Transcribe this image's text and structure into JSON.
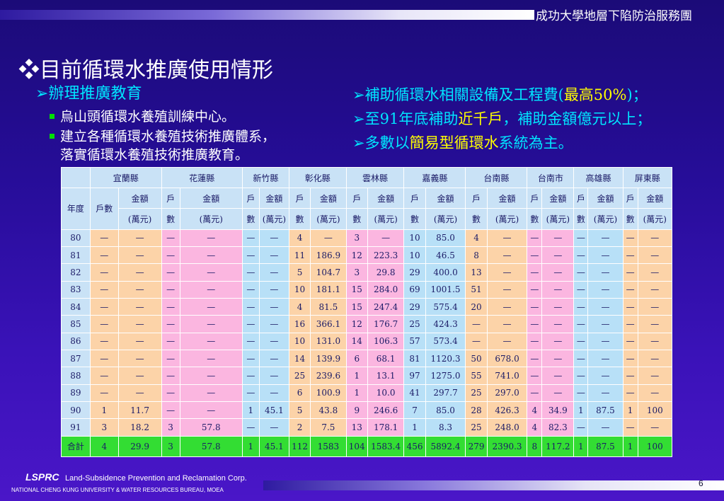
{
  "header": {
    "org": "成功大學地層下陷防治服務團"
  },
  "title": "目前循環水推廣使用情形",
  "title_icon": "diamond-bullet-icon",
  "left": {
    "heading": "辦理推廣教育",
    "bullets": [
      "烏山頭循環水養殖訓練中心。",
      "建立各種循環水養殖技術推廣體系，",
      "落實循環水養殖技術推廣教育。"
    ]
  },
  "right": {
    "line1_pre": "補助循環水相關設備及工程費(",
    "line1_hl": "最高50%",
    "line1_post": ")；",
    "line2_a": "至91年底補助",
    "line2_hl": "近千戶",
    "line2_b": "，補助金額億元以上；",
    "line3_a": "多數以",
    "line3_hl": "簡易型循環水",
    "line3_b": "系統為主。"
  },
  "table": {
    "counties": [
      "宜蘭縣",
      "花蓮縣",
      "新竹縣",
      "彰化縣",
      "雲林縣",
      "嘉義縣",
      "台南縣",
      "台南市",
      "高雄縣",
      "屏東縣"
    ],
    "year_label": "年度",
    "households_label": "戶數",
    "amount_label": "金額",
    "unit_label": "(萬元)",
    "hh_top": "戶",
    "hh_bottom": "數",
    "rows": [
      {
        "year": "80",
        "v": [
          "—",
          "—",
          "—",
          "—",
          "—",
          "—",
          "4",
          "—",
          "3",
          "—",
          "10",
          "85.0",
          "4",
          "—",
          "—",
          "—",
          "—",
          "—",
          "—",
          "—"
        ]
      },
      {
        "year": "81",
        "v": [
          "—",
          "—",
          "—",
          "—",
          "—",
          "—",
          "11",
          "186.9",
          "12",
          "223.3",
          "10",
          "46.5",
          "8",
          "—",
          "—",
          "—",
          "—",
          "—",
          "—",
          "—"
        ]
      },
      {
        "year": "82",
        "v": [
          "—",
          "—",
          "—",
          "—",
          "—",
          "—",
          "5",
          "104.7",
          "3",
          "29.8",
          "29",
          "400.0",
          "13",
          "—",
          "—",
          "—",
          "—",
          "—",
          "—",
          "—"
        ]
      },
      {
        "year": "83",
        "v": [
          "—",
          "—",
          "—",
          "—",
          "—",
          "—",
          "10",
          "181.1",
          "15",
          "284.0",
          "69",
          "1001.5",
          "51",
          "—",
          "—",
          "—",
          "—",
          "—",
          "—",
          "—"
        ]
      },
      {
        "year": "84",
        "v": [
          "—",
          "—",
          "—",
          "—",
          "—",
          "—",
          "4",
          "81.5",
          "15",
          "247.4",
          "29",
          "575.4",
          "20",
          "—",
          "—",
          "—",
          "—",
          "—",
          "—",
          "—"
        ]
      },
      {
        "year": "85",
        "v": [
          "—",
          "—",
          "—",
          "—",
          "—",
          "—",
          "16",
          "366.1",
          "12",
          "176.7",
          "25",
          "424.3",
          "—",
          "—",
          "—",
          "—",
          "—",
          "—",
          "—",
          "—"
        ]
      },
      {
        "year": "86",
        "v": [
          "—",
          "—",
          "—",
          "—",
          "—",
          "—",
          "10",
          "131.0",
          "14",
          "106.3",
          "57",
          "573.4",
          "—",
          "—",
          "—",
          "—",
          "—",
          "—",
          "—",
          "—"
        ]
      },
      {
        "year": "87",
        "v": [
          "—",
          "—",
          "—",
          "—",
          "—",
          "—",
          "14",
          "139.9",
          "6",
          "68.1",
          "81",
          "1120.3",
          "50",
          "678.0",
          "—",
          "—",
          "—",
          "—",
          "—",
          "—"
        ]
      },
      {
        "year": "88",
        "v": [
          "—",
          "—",
          "—",
          "—",
          "—",
          "—",
          "25",
          "239.6",
          "1",
          "13.1",
          "97",
          "1275.0",
          "55",
          "741.0",
          "—",
          "—",
          "—",
          "—",
          "—",
          "—"
        ]
      },
      {
        "year": "89",
        "v": [
          "—",
          "—",
          "—",
          "—",
          "—",
          "—",
          "6",
          "100.9",
          "1",
          "10.0",
          "41",
          "297.7",
          "25",
          "297.0",
          "—",
          "—",
          "—",
          "—",
          "—",
          "—"
        ]
      },
      {
        "year": "90",
        "v": [
          "1",
          "11.7",
          "—",
          "—",
          "1",
          "45.1",
          "5",
          "43.8",
          "9",
          "246.6",
          "7",
          "85.0",
          "28",
          "426.3",
          "4",
          "34.9",
          "1",
          "87.5",
          "1",
          "100"
        ]
      },
      {
        "year": "91",
        "v": [
          "3",
          "18.2",
          "3",
          "57.8",
          "—",
          "—",
          "2",
          "7.5",
          "13",
          "178.1",
          "1",
          "8.3",
          "25",
          "248.0",
          "4",
          "82.3",
          "—",
          "—",
          "—",
          "—"
        ]
      }
    ],
    "total": {
      "year": "合計",
      "v": [
        "4",
        "29.9",
        "3",
        "57.8",
        "1",
        "45.1",
        "112",
        "1583",
        "104",
        "1583.4",
        "456",
        "5892.4",
        "279",
        "2390.3",
        "8",
        "117.2",
        "1",
        "87.5",
        "1",
        "100"
      ]
    }
  },
  "footer": {
    "logo": "LSPRC",
    "name": "Land-Subsidence Prevention and Reclamation Corp.",
    "sub": "NATIONAL CHENG KUNG UNIVERSITY & WATER RESOURCES BUREAU, MOEA",
    "page": "6"
  }
}
